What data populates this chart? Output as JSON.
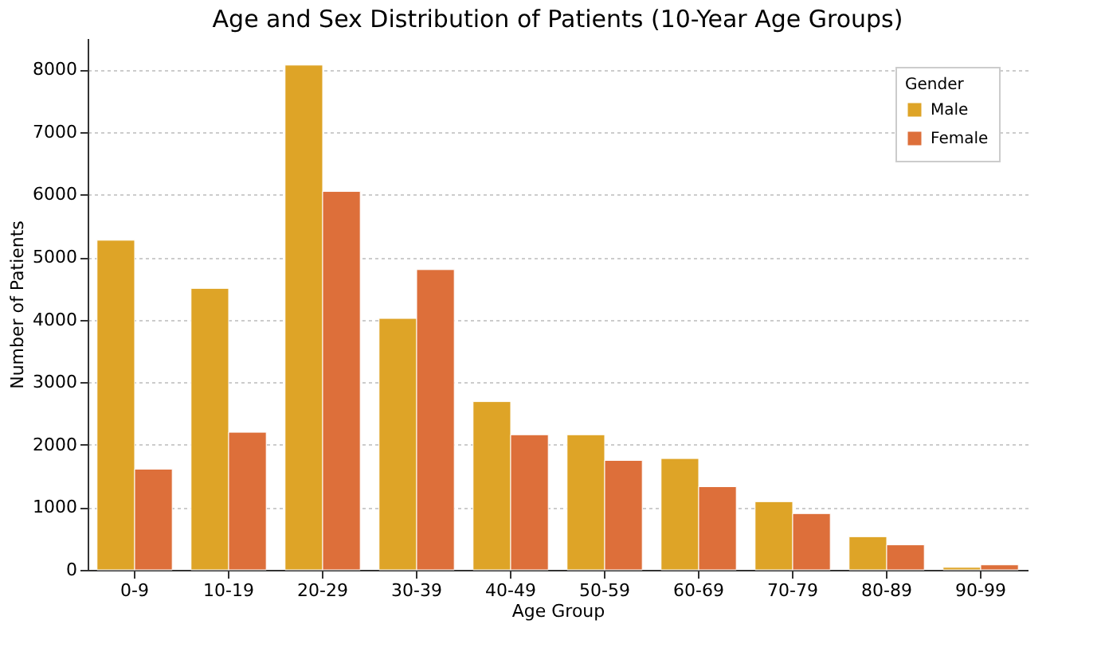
{
  "chart_data": {
    "type": "bar",
    "title": "Age and Sex Distribution of Patients (10-Year Age Groups)",
    "xlabel": "Age Group",
    "ylabel": "Number of Patients",
    "legend_title": "Gender",
    "categories": [
      "0-9",
      "10-19",
      "20-29",
      "30-39",
      "40-49",
      "50-59",
      "60-69",
      "70-79",
      "80-89",
      "90-99"
    ],
    "series": [
      {
        "name": "Male",
        "color": "#dea427",
        "values": [
          5270,
          4500,
          8070,
          4020,
          2690,
          2160,
          1780,
          1090,
          530,
          40
        ]
      },
      {
        "name": "Female",
        "color": "#dd6f3a",
        "values": [
          1610,
          2200,
          6050,
          4800,
          2160,
          1750,
          1330,
          900,
          400,
          80
        ]
      }
    ],
    "ylim": [
      0,
      8500
    ],
    "yticks": [
      0,
      1000,
      2000,
      3000,
      4000,
      5000,
      6000,
      7000,
      8000
    ],
    "grid": "y",
    "legend": "top right"
  }
}
